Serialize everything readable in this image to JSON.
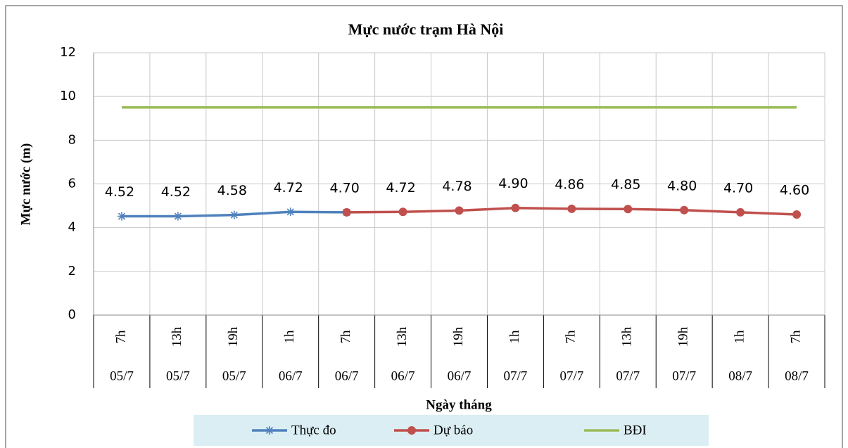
{
  "chart_data": {
    "type": "line",
    "title": "Mực nước trạm Hà Nội",
    "y_label": "Mực nước (m)",
    "x_label": "Ngày tháng",
    "categories": [
      "7h",
      "13h",
      "19h",
      "1h",
      "7h",
      "13h",
      "19h",
      "1h",
      "7h",
      "13h",
      "19h",
      "1h",
      "7h"
    ],
    "dates": [
      "05/7",
      "05/7",
      "05/7",
      "06/7",
      "06/7",
      "06/7",
      "06/7",
      "07/7",
      "07/7",
      "07/7",
      "07/7",
      "08/7",
      "08/7"
    ],
    "series": [
      {
        "name": "Thực đo",
        "color": "#4f81bd",
        "marker": "star",
        "values": [
          4.52,
          4.52,
          4.58,
          4.72,
          4.7,
          null,
          null,
          null,
          null,
          null,
          null,
          null,
          null
        ],
        "value_labels": [
          "4.52",
          "4.52",
          "4.58",
          "4.72",
          "4.70",
          null,
          null,
          null,
          null,
          null,
          null,
          null,
          null
        ]
      },
      {
        "name": "Dự báo",
        "color": "#c0504d",
        "marker": "circle",
        "values": [
          null,
          null,
          null,
          null,
          4.7,
          4.72,
          4.78,
          4.9,
          4.86,
          4.85,
          4.8,
          4.7,
          4.6
        ],
        "value_labels": [
          null,
          null,
          null,
          null,
          null,
          "4.72",
          "4.78",
          "4.90",
          "4.86",
          "4.85",
          "4.80",
          "4.70",
          "4.60"
        ]
      },
      {
        "name": "BĐI",
        "color": "#9bbb59",
        "marker": "none",
        "values": [
          9.5,
          9.5,
          9.5,
          9.5,
          9.5,
          9.5,
          9.5,
          9.5,
          9.5,
          9.5,
          9.5,
          9.5,
          9.5
        ]
      }
    ],
    "ylim": [
      0,
      12
    ],
    "yticks": [
      0,
      2,
      4,
      6,
      8,
      10,
      12
    ],
    "grid": true,
    "legend": "bottom"
  }
}
